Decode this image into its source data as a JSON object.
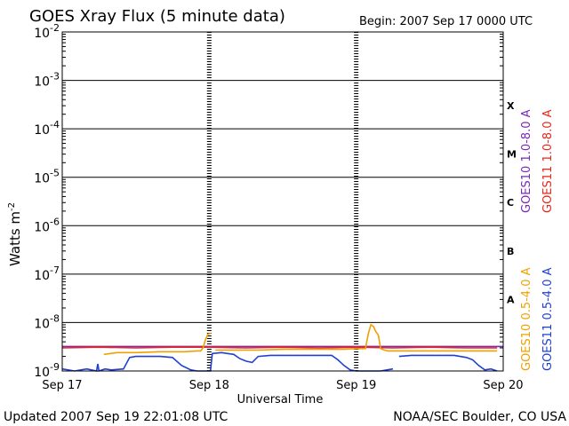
{
  "chart_data": {
    "type": "line",
    "title": "GOES Xray Flux (5 minute data)",
    "begin_label": "Begin:  2007 Sep 17 0000 UTC",
    "ylabel": "Watts m",
    "ylabel_sup": "-2",
    "xlabel": "Universal Time",
    "y_scale": "log",
    "ylim": [
      1e-09,
      0.01
    ],
    "y_ticks": [
      {
        "exp": "-2",
        "value": 0.01
      },
      {
        "exp": "-3",
        "value": 0.001
      },
      {
        "exp": "-4",
        "value": 0.0001
      },
      {
        "exp": "-5",
        "value": 1e-05
      },
      {
        "exp": "-6",
        "value": 1e-06
      },
      {
        "exp": "-7",
        "value": 1e-07
      },
      {
        "exp": "-8",
        "value": 1e-08
      },
      {
        "exp": "-9",
        "value": 1e-09
      }
    ],
    "xlim_hours": [
      0,
      72
    ],
    "x_ticks": [
      {
        "label": "Sep 17",
        "hour": 0
      },
      {
        "label": "Sep 18",
        "hour": 24
      },
      {
        "label": "Sep 19",
        "hour": 48
      },
      {
        "label": "Sep 20",
        "hour": 72
      }
    ],
    "flare_classes": [
      {
        "label": "X",
        "value": 0.0003
      },
      {
        "label": "M",
        "value": 3e-05
      },
      {
        "label": "C",
        "value": 3e-06
      },
      {
        "label": "B",
        "value": 3e-07
      },
      {
        "label": "A",
        "value": 3e-08
      }
    ],
    "grid": true,
    "legend_position": "right",
    "legend": [
      {
        "label": "GOES10 1.0-8.0 A",
        "color": "#7a28b8"
      },
      {
        "label": "GOES11 1.0-8.0 A",
        "color": "#e8261c"
      },
      {
        "label": "GOES10 0.5-4.0 A",
        "color": "#f0a000"
      },
      {
        "label": "GOES11 0.5-4.0 A",
        "color": "#1f3fd0"
      }
    ],
    "series": [
      {
        "name": "GOES10 1.0-8.0 A",
        "color": "#7a28b8",
        "x": [
          0,
          72
        ],
        "y": [
          3.2e-09,
          3.2e-09
        ]
      },
      {
        "name": "GOES11 1.0-8.0 A",
        "color": "#e8261c",
        "x": [
          0,
          6,
          12,
          18,
          24,
          30,
          36,
          42,
          48,
          54,
          60,
          66,
          71
        ],
        "y": [
          3e-09,
          3.1e-09,
          3e-09,
          3.1e-09,
          3.1e-09,
          3e-09,
          3.1e-09,
          3e-09,
          3.1e-09,
          3e-09,
          3.1e-09,
          3e-09,
          3e-09
        ]
      },
      {
        "name": "GOES10 0.5-4.0 A",
        "color": "#f0a000",
        "x": [
          6.8,
          9,
          12,
          16,
          20,
          22,
          22.6,
          23.0,
          23.4,
          23.8,
          24.3,
          24.6,
          25.0,
          28,
          32,
          36,
          40,
          44,
          46,
          48,
          49.5,
          50.0,
          50.4,
          50.8,
          51.2,
          51.6,
          52.0,
          52.6,
          53.2,
          56,
          60,
          64,
          68,
          71
        ],
        "y": [
          2.2e-09,
          2.4e-09,
          2.4e-09,
          2.5e-09,
          2.5e-09,
          2.6e-09,
          2.6e-09,
          3e-09,
          4.5e-09,
          5.8e-09,
          6e-09,
          null,
          2.7e-09,
          2.7e-09,
          2.7e-09,
          2.8e-09,
          2.8e-09,
          2.8e-09,
          2.8e-09,
          2.9e-09,
          2.9e-09,
          6e-09,
          9e-09,
          8.3e-09,
          6.5e-09,
          5.5e-09,
          2.9e-09,
          2.7e-09,
          2.6e-09,
          2.6e-09,
          2.6e-09,
          2.6e-09,
          2.6e-09,
          2.6e-09
        ]
      },
      {
        "name": "GOES11 0.5-4.0 A",
        "color": "#1f3fd0",
        "x": [
          0,
          2,
          4,
          5.6,
          5.8,
          6.0,
          7,
          8,
          10,
          11,
          12,
          14,
          16,
          18,
          19.5,
          21,
          22,
          23,
          24.2,
          24.5,
          26,
          28,
          29,
          30,
          31,
          32,
          34,
          36,
          40,
          44,
          45,
          46,
          47,
          48,
          50,
          52,
          53,
          54,
          54.5,
          55,
          57,
          60,
          64,
          66,
          67,
          68,
          69,
          70,
          71
        ],
        "y": [
          1.1e-09,
          1e-09,
          1.1e-09,
          1e-09,
          1.4e-09,
          1e-09,
          1.1e-09,
          1.05e-09,
          1.1e-09,
          1.9e-09,
          2e-09,
          2e-09,
          2e-09,
          1.9e-09,
          1.3e-09,
          1.05e-09,
          1e-09,
          1e-09,
          1e-09,
          2.3e-09,
          2.4e-09,
          2.2e-09,
          1.8e-09,
          1.6e-09,
          1.5e-09,
          2e-09,
          2.1e-09,
          2.1e-09,
          2.1e-09,
          2.1e-09,
          1.7e-09,
          1.3e-09,
          1.05e-09,
          1e-09,
          1e-09,
          1e-09,
          1.05e-09,
          1.1e-09,
          null,
          2e-09,
          2.1e-09,
          2.1e-09,
          2.1e-09,
          1.9e-09,
          1.7e-09,
          1.3e-09,
          1.05e-09,
          1.1e-09,
          1e-09
        ]
      }
    ]
  },
  "footer": {
    "updated": "Updated 2007 Sep 19 22:01:08 UTC",
    "source": "NOAA/SEC Boulder, CO USA"
  }
}
